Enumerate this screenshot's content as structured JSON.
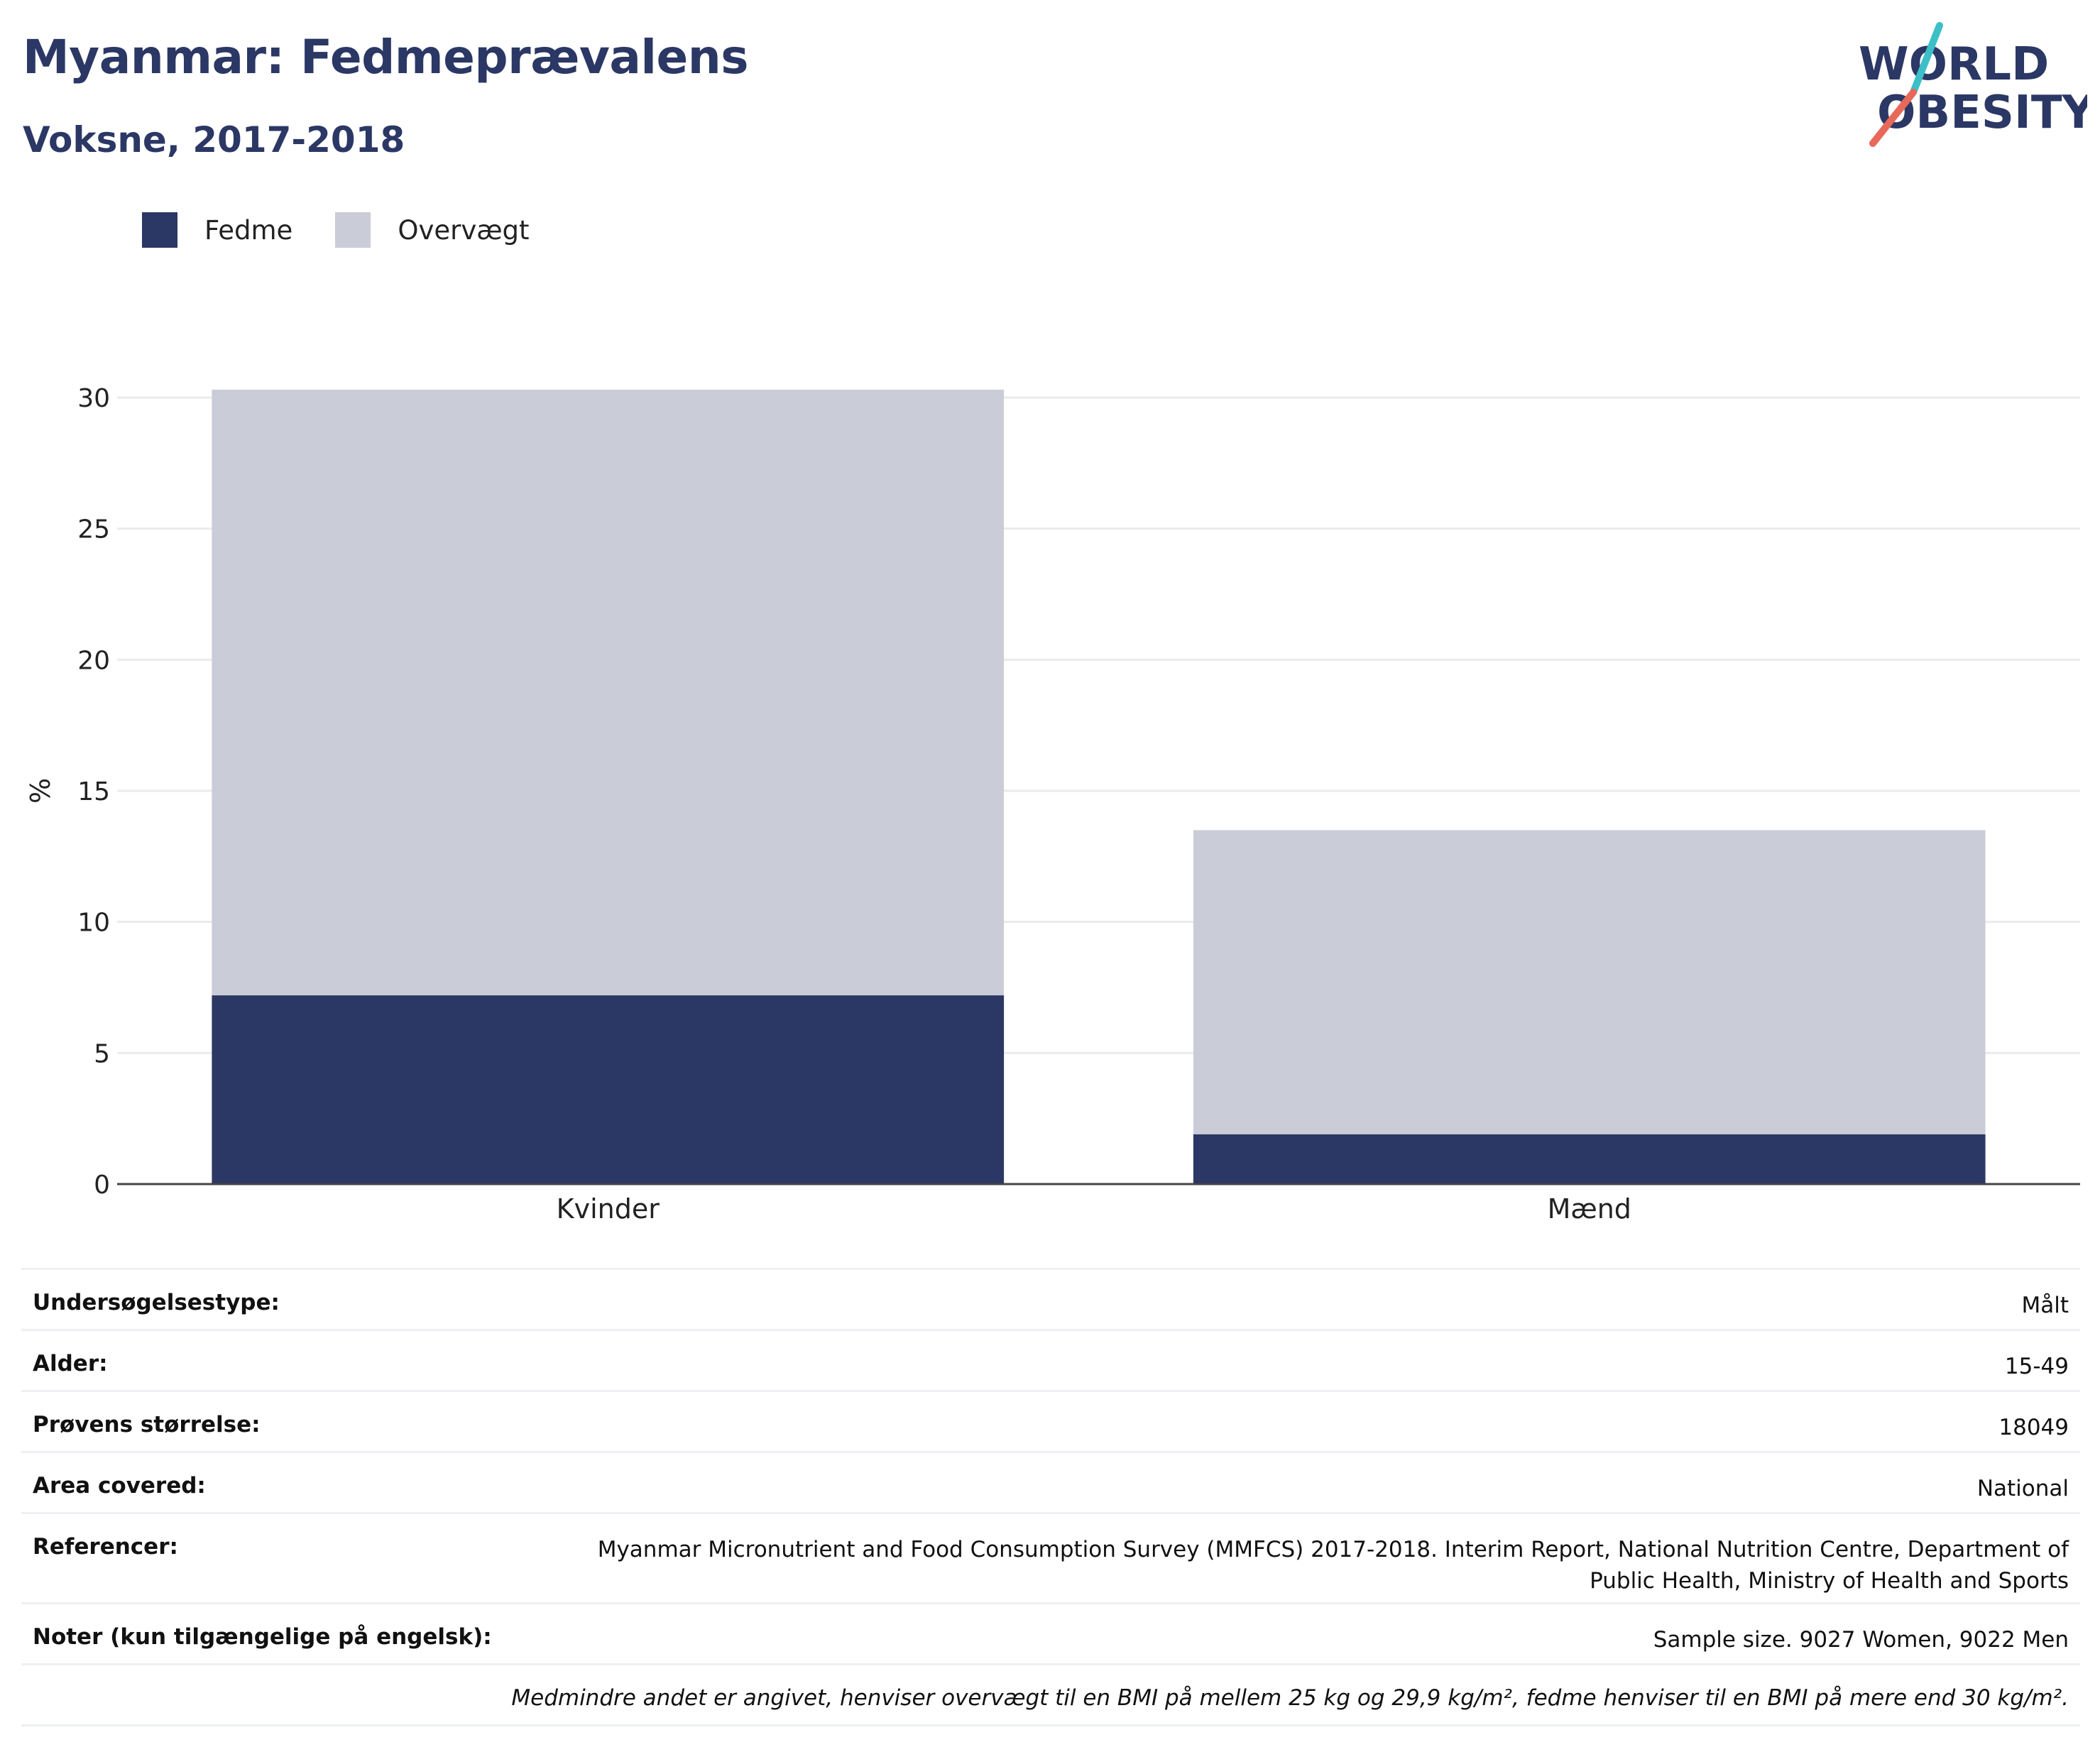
{
  "header": {
    "title": "Myanmar: Fedmeprævalens",
    "subtitle": "Voksne, 2017-2018"
  },
  "logo": {
    "line1": "WORLD",
    "line2": "OBESITY",
    "colors": {
      "text": "#2b3764",
      "slash_top": "#3cbfc6",
      "slash_bottom": "#e8685a"
    }
  },
  "chart_data": {
    "type": "bar",
    "stacked": true,
    "categories": [
      "Kvinder",
      "Mænd"
    ],
    "series": [
      {
        "name": "Fedme",
        "values": [
          7.2,
          1.9
        ],
        "color": "#2b3764"
      },
      {
        "name": "Overvægt",
        "values": [
          23.1,
          11.6
        ],
        "color": "#cacdd8"
      }
    ],
    "ylabel": "%",
    "ylim": [
      0,
      30
    ],
    "yticks": [
      0,
      5,
      10,
      15,
      20,
      25,
      30
    ],
    "grid": true,
    "legend_position": "top-left"
  },
  "info": {
    "rows": [
      {
        "label": "Undersøgelsestype:",
        "value": "Målt"
      },
      {
        "label": "Alder:",
        "value": "15-49"
      },
      {
        "label": "Prøvens størrelse:",
        "value": "18049"
      },
      {
        "label": "Area covered:",
        "value": "National"
      },
      {
        "label": "Referencer:",
        "value_line1": "Myanmar Micronutrient and Food Consumption Survey (MMFCS) 2017-2018. Interim Report, National Nutrition Centre, Department of",
        "value_line2": "Public Health, Ministry of Health and Sports"
      },
      {
        "label": "Noter (kun tilgængelige på engelsk):",
        "value": "Sample size. 9027 Women, 9022 Men"
      }
    ],
    "footnote": "Medmindre andet er angivet, henviser overvægt til en BMI på mellem 25 kg og 29,9 kg/m², fedme henviser til en BMI på mere end 30 kg/m²."
  }
}
